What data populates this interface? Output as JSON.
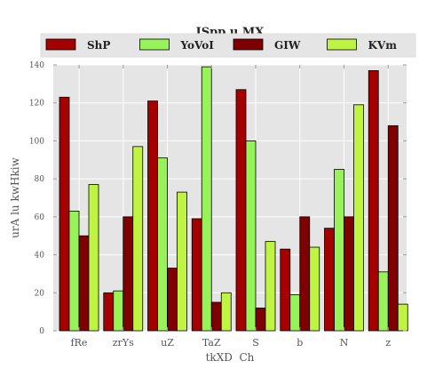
{
  "chart_data": {
    "type": "bar",
    "title": "ISpp u MX",
    "xlabel": "tkXD  Ch",
    "ylabel": "urA lu kwHkiw",
    "categories": [
      "fRe",
      "zrYs",
      "uZ",
      "TaZ",
      "S",
      "b",
      "N",
      "z"
    ],
    "series": [
      {
        "name": "ShP",
        "color": "#a50000",
        "values": [
          123,
          20,
          121,
          59,
          127,
          43,
          54,
          137
        ]
      },
      {
        "name": "YoVoI",
        "color": "#98f25a",
        "values": [
          63,
          21,
          91,
          139,
          100,
          19,
          85,
          31
        ]
      },
      {
        "name": "GIW",
        "color": "#7e0000",
        "values": [
          50,
          60,
          33,
          15,
          12,
          60,
          60,
          108
        ]
      },
      {
        "name": "KVm",
        "color": "#bff542",
        "values": [
          77,
          97,
          73,
          20,
          47,
          44,
          119,
          14
        ]
      }
    ],
    "ylim": [
      0,
      140
    ],
    "yticks": [
      0,
      20,
      40,
      60,
      80,
      100,
      120,
      140
    ],
    "grid": true,
    "legend_position": "top",
    "colors": {
      "plot_background": "#e5e5e5",
      "grid": "#ffffff",
      "bar_edge": "#000000",
      "text": "#555555"
    }
  }
}
